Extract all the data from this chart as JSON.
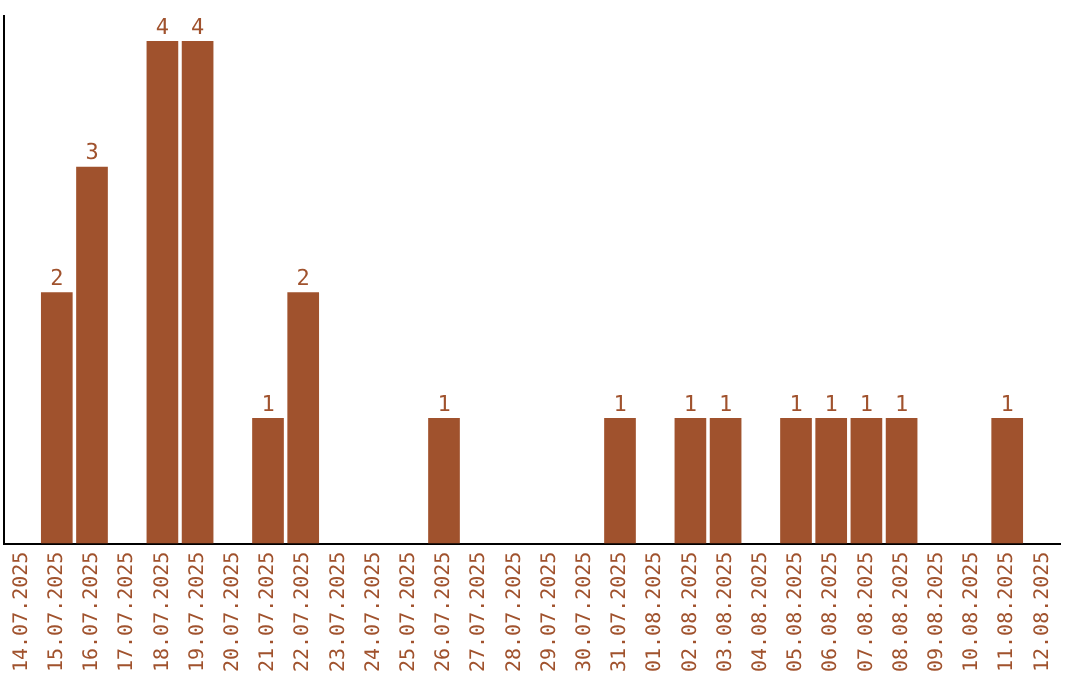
{
  "chart_data": {
    "type": "bar",
    "categories": [
      "14.07.2025",
      "15.07.2025",
      "16.07.2025",
      "17.07.2025",
      "18.07.2025",
      "19.07.2025",
      "20.07.2025",
      "21.07.2025",
      "22.07.2025",
      "23.07.2025",
      "24.07.2025",
      "25.07.2025",
      "26.07.2025",
      "27.07.2025",
      "28.07.2025",
      "29.07.2025",
      "30.07.2025",
      "31.07.2025",
      "01.08.2025",
      "02.08.2025",
      "03.08.2025",
      "04.08.2025",
      "05.08.2025",
      "06.08.2025",
      "07.08.2025",
      "08.08.2025",
      "09.08.2025",
      "10.08.2025",
      "11.08.2025",
      "12.08.2025"
    ],
    "series": [
      {
        "color": "#a0522d",
        "values": [
          null,
          2,
          3,
          null,
          4,
          4,
          null,
          1,
          2,
          null,
          null,
          null,
          1,
          null,
          null,
          null,
          null,
          1,
          null,
          1,
          1,
          null,
          1,
          1,
          1,
          1,
          null,
          null,
          1,
          null
        ]
      }
    ],
    "ylim": [
      0,
      4.2
    ],
    "data_labels": true,
    "tick_labels": "x",
    "grid": false,
    "legend": false
  }
}
